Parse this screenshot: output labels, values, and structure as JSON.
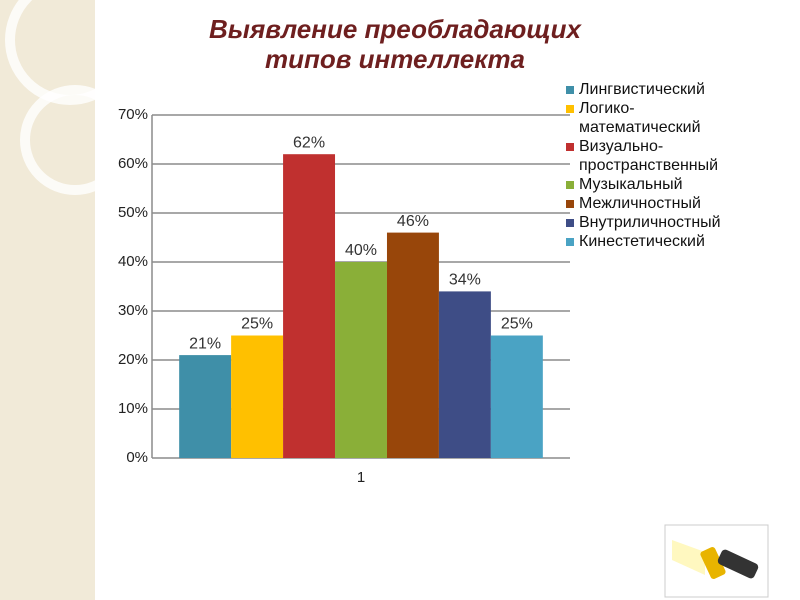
{
  "chart_data": {
    "type": "bar",
    "title": "Выявление преобладающих типов  интеллекта",
    "categories": [
      "1"
    ],
    "series": [
      {
        "name": "Лингвистический",
        "color": "#3f8fa8",
        "values": [
          21
        ],
        "value_labels": [
          "21%"
        ]
      },
      {
        "name": "Логико-математический",
        "color": "#ffc000",
        "values": [
          25
        ],
        "value_labels": [
          "25%"
        ]
      },
      {
        "name": "Визуально-пространственный",
        "color": "#c0302f",
        "values": [
          62
        ],
        "value_labels": [
          "62%"
        ]
      },
      {
        "name": "Музыкальный",
        "color": "#8aaf38",
        "values": [
          40
        ],
        "value_labels": [
          "40%"
        ]
      },
      {
        "name": "Межличностный",
        "color": "#98460a",
        "values": [
          46
        ],
        "value_labels": [
          "46%"
        ]
      },
      {
        "name": "Внутриличностный",
        "color": "#3e4d86",
        "values": [
          34
        ],
        "value_labels": [
          "34%"
        ]
      },
      {
        "name": "Кинестетический",
        "color": "#4aa3c4",
        "values": [
          25
        ],
        "value_labels": [
          "25%"
        ]
      }
    ],
    "ylim": [
      0,
      70
    ],
    "yticks": [
      {
        "value": 0,
        "label": "0%"
      },
      {
        "value": 10,
        "label": "10%"
      },
      {
        "value": 20,
        "label": "20%"
      },
      {
        "value": 30,
        "label": "30%"
      },
      {
        "value": 40,
        "label": "40%"
      },
      {
        "value": 50,
        "label": "50%"
      },
      {
        "value": 60,
        "label": "60%"
      },
      {
        "value": 70,
        "label": "70%"
      }
    ],
    "grid": true,
    "legend": "right"
  }
}
